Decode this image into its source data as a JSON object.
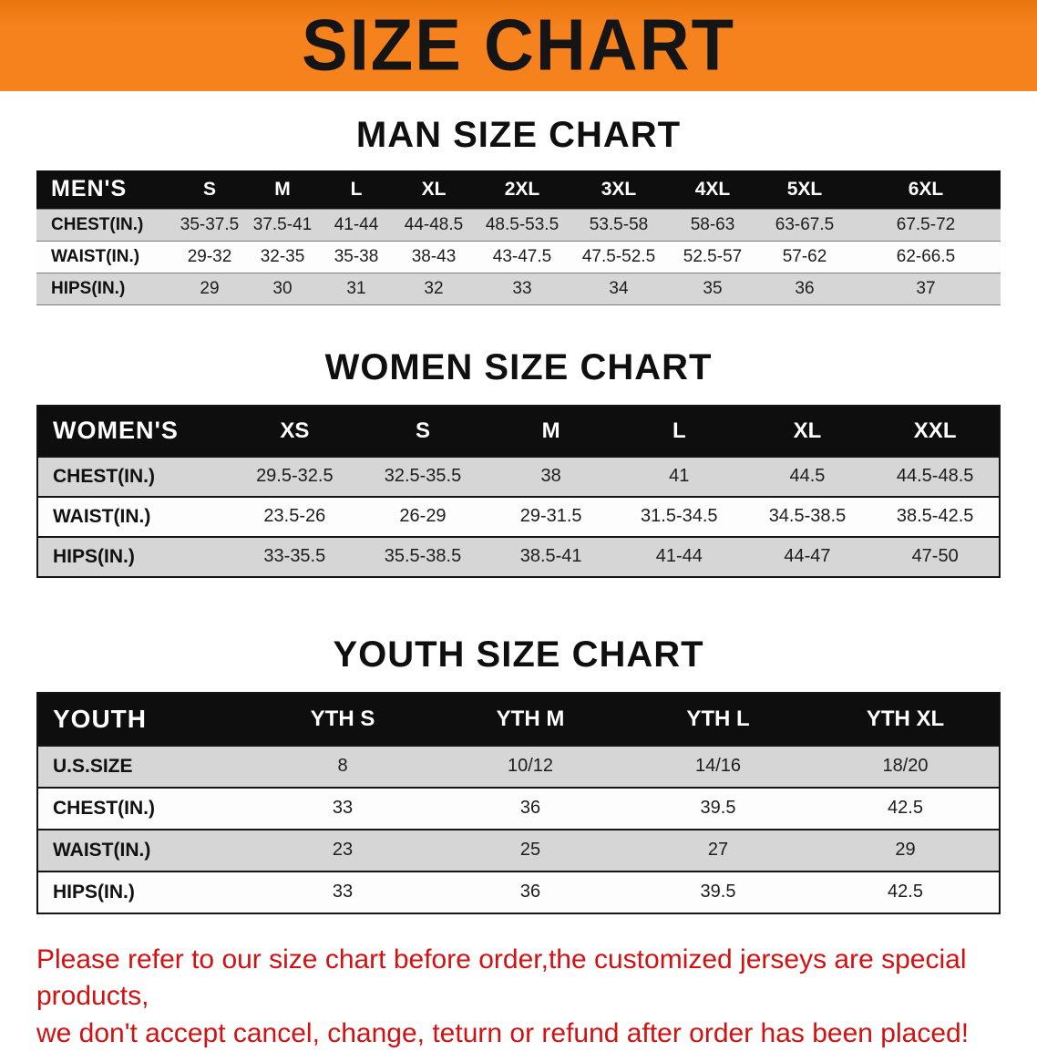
{
  "banner": {
    "title": "SIZE CHART"
  },
  "colors": {
    "banner_bg": "#F6821E",
    "table_header_bg": "#0E0E0E",
    "row_stripe": "#D6D6D6",
    "note_red": "#D01212"
  },
  "sections": [
    {
      "id": "men",
      "heading": "MAN SIZE CHART",
      "table": {
        "header": [
          "MEN'S",
          "S",
          "M",
          "L",
          "XL",
          "2XL",
          "3XL",
          "4XL",
          "5XL",
          "6XL"
        ],
        "rows": [
          [
            "CHEST(IN.)",
            "35-37.5",
            "37.5-41",
            "41-44",
            "44-48.5",
            "48.5-53.5",
            "53.5-58",
            "58-63",
            "63-67.5",
            "67.5-72"
          ],
          [
            "WAIST(IN.)",
            "29-32",
            "32-35",
            "35-38",
            "38-43",
            "43-47.5",
            "47.5-52.5",
            "52.5-57",
            "57-62",
            "62-66.5"
          ],
          [
            "HIPS(IN.)",
            "29",
            "30",
            "31",
            "32",
            "33",
            "34",
            "35",
            "36",
            "37"
          ]
        ]
      }
    },
    {
      "id": "women",
      "heading": "WOMEN SIZE CHART",
      "table": {
        "header": [
          "WOMEN'S",
          "XS",
          "S",
          "M",
          "L",
          "XL",
          "XXL"
        ],
        "rows": [
          [
            "CHEST(IN.)",
            "29.5-32.5",
            "32.5-35.5",
            "38",
            "41",
            "44.5",
            "44.5-48.5"
          ],
          [
            "WAIST(IN.)",
            "23.5-26",
            "26-29",
            "29-31.5",
            "31.5-34.5",
            "34.5-38.5",
            "38.5-42.5"
          ],
          [
            "HIPS(IN.)",
            "33-35.5",
            "35.5-38.5",
            "38.5-41",
            "41-44",
            "44-47",
            "47-50"
          ]
        ]
      }
    },
    {
      "id": "youth",
      "heading": "YOUTH SIZE CHART",
      "table": {
        "header": [
          "YOUTH",
          "YTH S",
          "YTH M",
          "YTH L",
          "YTH XL"
        ],
        "rows": [
          [
            "U.S.SIZE",
            "8",
            "10/12",
            "14/16",
            "18/20"
          ],
          [
            "CHEST(IN.)",
            "33",
            "36",
            "39.5",
            "42.5"
          ],
          [
            "WAIST(IN.)",
            "23",
            "25",
            "27",
            "29"
          ],
          [
            "HIPS(IN.)",
            "33",
            "36",
            "39.5",
            "42.5"
          ]
        ]
      }
    }
  ],
  "footer": {
    "lines": [
      "Please refer to our size chart before order,the customized jerseys are special products,",
      "we don't accept cancel, change, teturn or refund after order has been placed!"
    ]
  }
}
